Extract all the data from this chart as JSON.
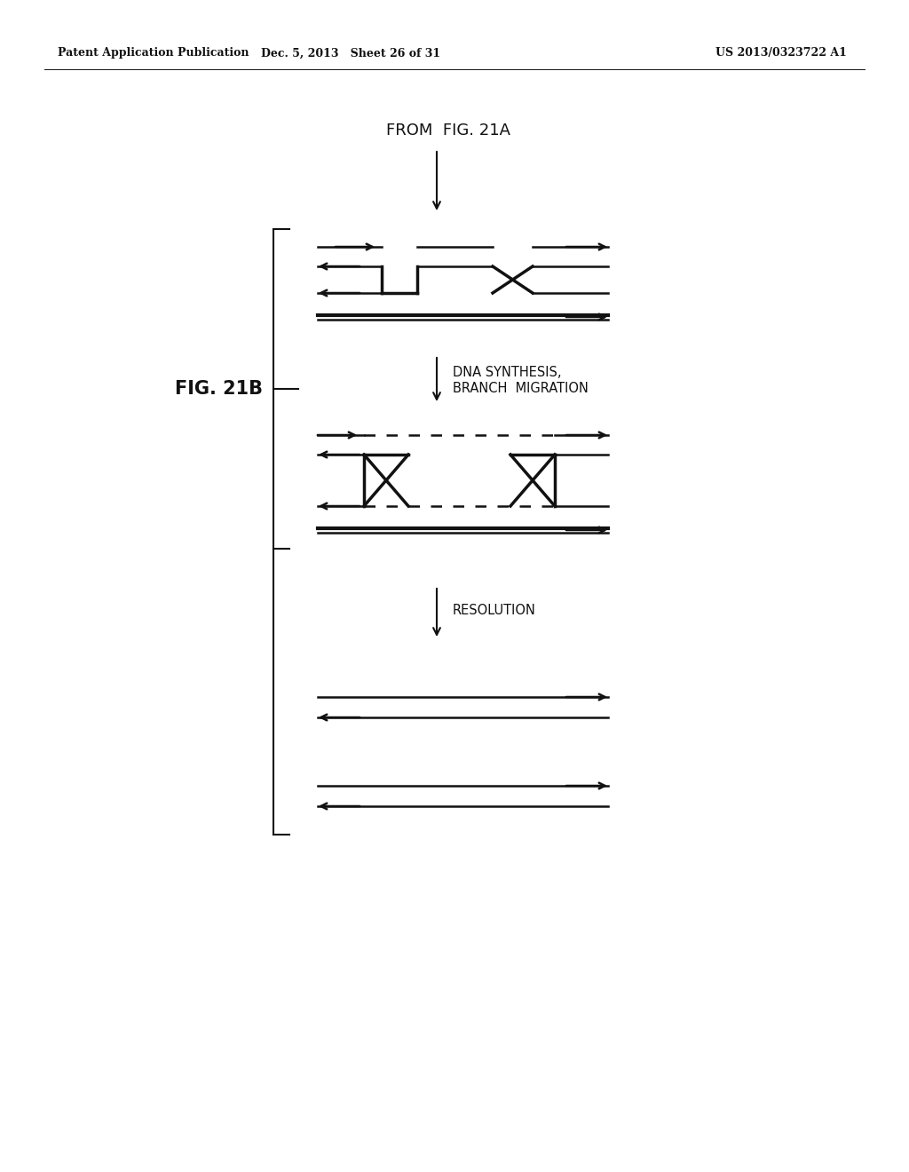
{
  "header_left": "Patent Application Publication",
  "header_mid": "Dec. 5, 2013   Sheet 26 of 31",
  "header_right": "US 2013/0323722 A1",
  "from_label": "FROM  FIG. 21A",
  "label_dna_synthesis": "DNA SYNTHESIS,\nBRANCH  MIGRATION",
  "label_resolution": "RESOLUTION",
  "label_fig": "FIG. 21B",
  "bg_color": "#ffffff",
  "line_color": "#111111",
  "lw": 1.8,
  "lw_thick": 2.5,
  "lw_template": 3.0
}
